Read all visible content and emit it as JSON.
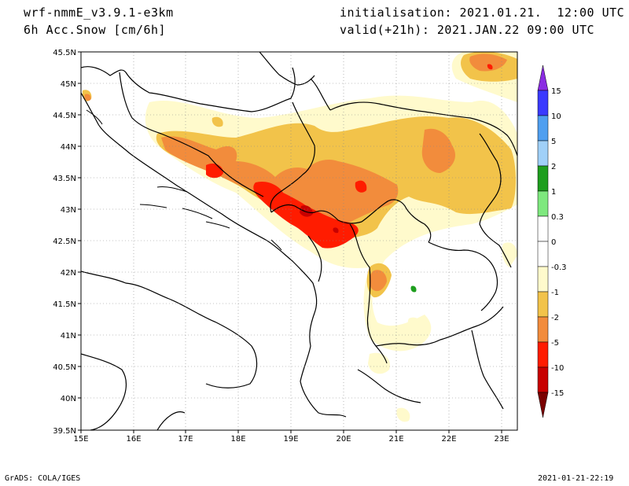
{
  "header": {
    "model": "wrf-nmmE_v3.9.1-e3km",
    "field": "6h Acc.Snow [cm/6h]",
    "initialisation": "initialisation: 2021.01.21.  12:00 UTC",
    "valid": "valid(+21h): 2021.JAN.22 09:00 UTC"
  },
  "axes": {
    "lat_labels": [
      "45.5N",
      "45N",
      "44.5N",
      "44N",
      "43.5N",
      "43N",
      "42.5N",
      "42N",
      "41.5N",
      "41N",
      "40.5N",
      "40N",
      "39.5N"
    ],
    "lon_labels": [
      "15E",
      "16E",
      "17E",
      "18E",
      "19E",
      "20E",
      "21E",
      "22E",
      "23E"
    ],
    "lat_range": [
      39.5,
      45.5
    ],
    "lon_range": [
      15,
      23.3
    ],
    "grid": "dotted"
  },
  "colorbar": {
    "levels": [
      {
        "label": "15",
        "color": "#9b30ff"
      },
      {
        "label": "10",
        "color": "#3a3aff"
      },
      {
        "label": "5",
        "color": "#4f9ff0"
      },
      {
        "label": "2",
        "color": "#a0d0f8"
      },
      {
        "label": "1",
        "color": "#1e9e1e"
      },
      {
        "label": "0.3",
        "color": "#7ee87e"
      },
      {
        "label": "0",
        "color": "#ffffff"
      },
      {
        "label": "-0.3",
        "color": "#ffffff"
      },
      {
        "label": "-1",
        "color": "#fffacc"
      },
      {
        "label": "-2",
        "color": "#f2c34a"
      },
      {
        "label": "-5",
        "color": "#f28c3c"
      },
      {
        "label": "-10",
        "color": "#ff1c00"
      },
      {
        "label": "-15",
        "color": "#c80000"
      }
    ],
    "top_color": "#8a2be2",
    "bottom_color": "#7a0000"
  },
  "footer": {
    "left": "GrADS: COLA/IGES",
    "right": "2021-01-21-22:19"
  }
}
